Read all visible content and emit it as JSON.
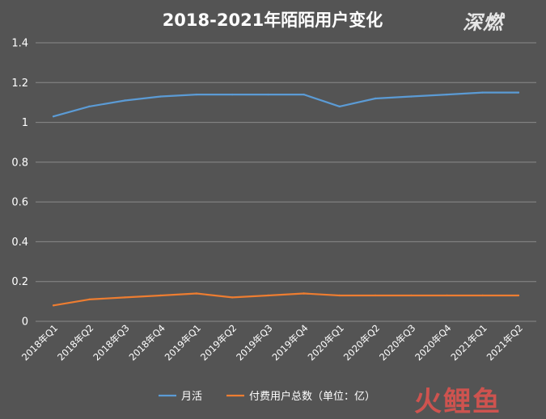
{
  "chart_data": {
    "type": "line",
    "title": "2018-2021年陌陌用户变化",
    "categories": [
      "2018年Q1",
      "2018年Q2",
      "2018年Q3",
      "2018年Q4",
      "2019年Q1",
      "2019年Q2",
      "2019年Q3",
      "2019年Q4",
      "2020年Q1",
      "2020年Q2",
      "2020年Q3",
      "2020年Q4",
      "2021年Q1",
      "2021年Q2"
    ],
    "series": [
      {
        "name": "月活",
        "color": "#5b9bd5",
        "values": [
          1.03,
          1.08,
          1.11,
          1.13,
          1.14,
          1.14,
          1.14,
          1.14,
          1.08,
          1.12,
          1.13,
          1.14,
          1.15,
          1.15
        ]
      },
      {
        "name": "付费用户总数（单位：亿）",
        "color": "#ed7d31",
        "values": [
          0.08,
          0.11,
          0.12,
          0.13,
          0.14,
          0.12,
          0.13,
          0.14,
          0.13,
          0.13,
          0.13,
          0.13,
          0.13,
          0.13
        ]
      }
    ],
    "ylim": [
      0,
      1.4
    ],
    "yticks": [
      "0",
      "0.2",
      "0.4",
      "0.6",
      "0.8",
      "1",
      "1.2",
      "1.4"
    ],
    "ytick_values": [
      0,
      0.2,
      0.4,
      0.6,
      0.8,
      1,
      1.2,
      1.4
    ],
    "grid": true,
    "legend_position": "bottom",
    "xlabel": "",
    "ylabel": ""
  },
  "branding": {
    "logo_text": "深燃",
    "watermark_text": "火鲤鱼"
  }
}
